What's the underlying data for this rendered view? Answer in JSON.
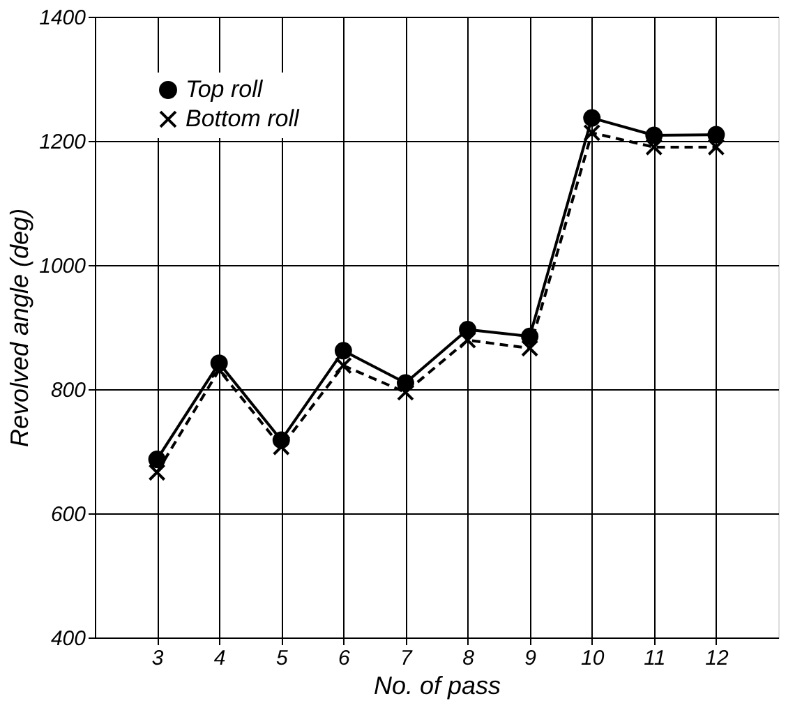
{
  "chart_data": {
    "type": "line",
    "xlabel": "No. of pass",
    "ylabel": "Revolved angle (deg)",
    "x": [
      3,
      4,
      5,
      6,
      7,
      8,
      9,
      10,
      11,
      12
    ],
    "series": [
      {
        "name": "Top roll",
        "color": "#000000",
        "marker": "circle",
        "line_style": "solid",
        "values": [
          687,
          842,
          718,
          862,
          810,
          896,
          885,
          1237,
          1209,
          1210
        ]
      },
      {
        "name": "Bottom roll",
        "color": "#000000",
        "marker": "cross",
        "line_style": "dashed",
        "values": [
          666,
          831,
          707,
          838,
          795,
          879,
          866,
          1213,
          1190,
          1190
        ]
      }
    ],
    "xlim": [
      2,
      13
    ],
    "xticks": [
      3,
      4,
      5,
      6,
      7,
      8,
      9,
      10,
      11,
      12
    ],
    "ylim": [
      400,
      1400
    ],
    "yticks": [
      400,
      600,
      800,
      1000,
      1200,
      1400
    ],
    "grid": true,
    "legend": "top left"
  }
}
